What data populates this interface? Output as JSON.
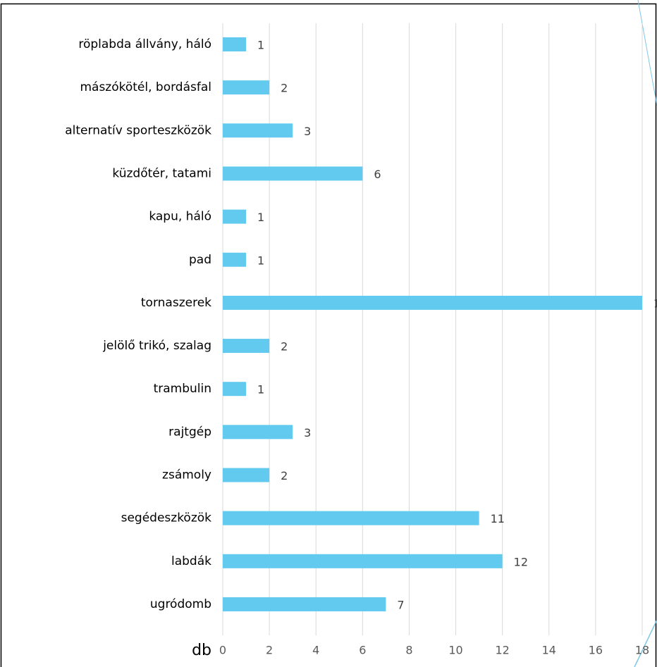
{
  "chart_data": {
    "type": "bar",
    "orientation": "horizontal",
    "x_label": "db",
    "categories": [
      "röplabda állvány, háló",
      "mászókötél, bordásfal",
      "alternatív sporteszközök",
      "küzdőtér, tatami",
      "kapu, háló",
      "pad",
      "tornaszerek",
      "jelölő trikó, szalag",
      "trambulin",
      "rajtgép",
      "zsámoly",
      "segédeszközök",
      "labdák",
      "ugródomb"
    ],
    "values": [
      1,
      2,
      3,
      6,
      1,
      1,
      18,
      2,
      1,
      3,
      2,
      11,
      12,
      7
    ],
    "color": "#62caee",
    "xlim": [
      0,
      18
    ],
    "xticks": [
      0,
      2,
      4,
      6,
      8,
      10,
      12,
      14,
      16,
      18
    ],
    "grid": true
  }
}
